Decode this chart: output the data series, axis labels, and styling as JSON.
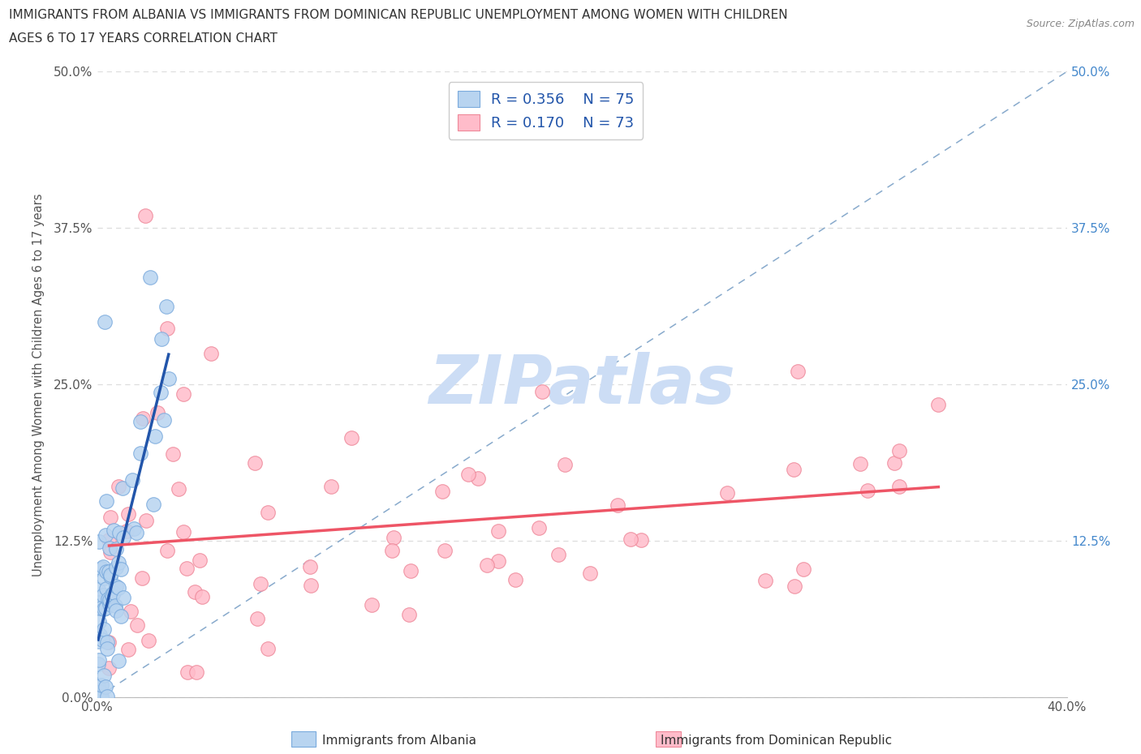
{
  "title_line1": "IMMIGRANTS FROM ALBANIA VS IMMIGRANTS FROM DOMINICAN REPUBLIC UNEMPLOYMENT AMONG WOMEN WITH CHILDREN",
  "title_line2": "AGES 6 TO 17 YEARS CORRELATION CHART",
  "source": "Source: ZipAtlas.com",
  "xlabel_albania": "Immigrants from Albania",
  "xlabel_dr": "Immigrants from Dominican Republic",
  "ylabel": "Unemployment Among Women with Children Ages 6 to 17 years",
  "xlim": [
    0.0,
    0.4
  ],
  "ylim": [
    0.0,
    0.5
  ],
  "yticks": [
    0.0,
    0.125,
    0.25,
    0.375,
    0.5
  ],
  "ytick_labels_left": [
    "0.0%",
    "12.5%",
    "25.0%",
    "37.5%",
    "50.0%"
  ],
  "ytick_labels_right": [
    "",
    "12.5%",
    "25.0%",
    "37.5%",
    "50.0%"
  ],
  "xticks": [
    0.0,
    0.1,
    0.2,
    0.3,
    0.4
  ],
  "xtick_labels": [
    "0.0%",
    "",
    "",
    "",
    "40.0%"
  ],
  "albania_fill": "#b8d4f0",
  "albania_edge": "#7aaadd",
  "dr_fill": "#ffbcca",
  "dr_edge": "#ee8899",
  "albania_trend_color": "#2255aa",
  "dr_trend_color": "#ee5566",
  "ref_dash_color": "#88aacc",
  "legend_R1": "0.356",
  "legend_N1": "75",
  "legend_R2": "0.170",
  "legend_N2": "73",
  "watermark_text": "ZIPatlas",
  "watermark_color": "#ccddf5",
  "bg": "#ffffff",
  "grid_color": "#dddddd",
  "right_tick_color": "#4488cc",
  "left_tick_color": "#555555",
  "title_color": "#333333",
  "source_color": "#888888",
  "legend_text_color": "#2255aa"
}
